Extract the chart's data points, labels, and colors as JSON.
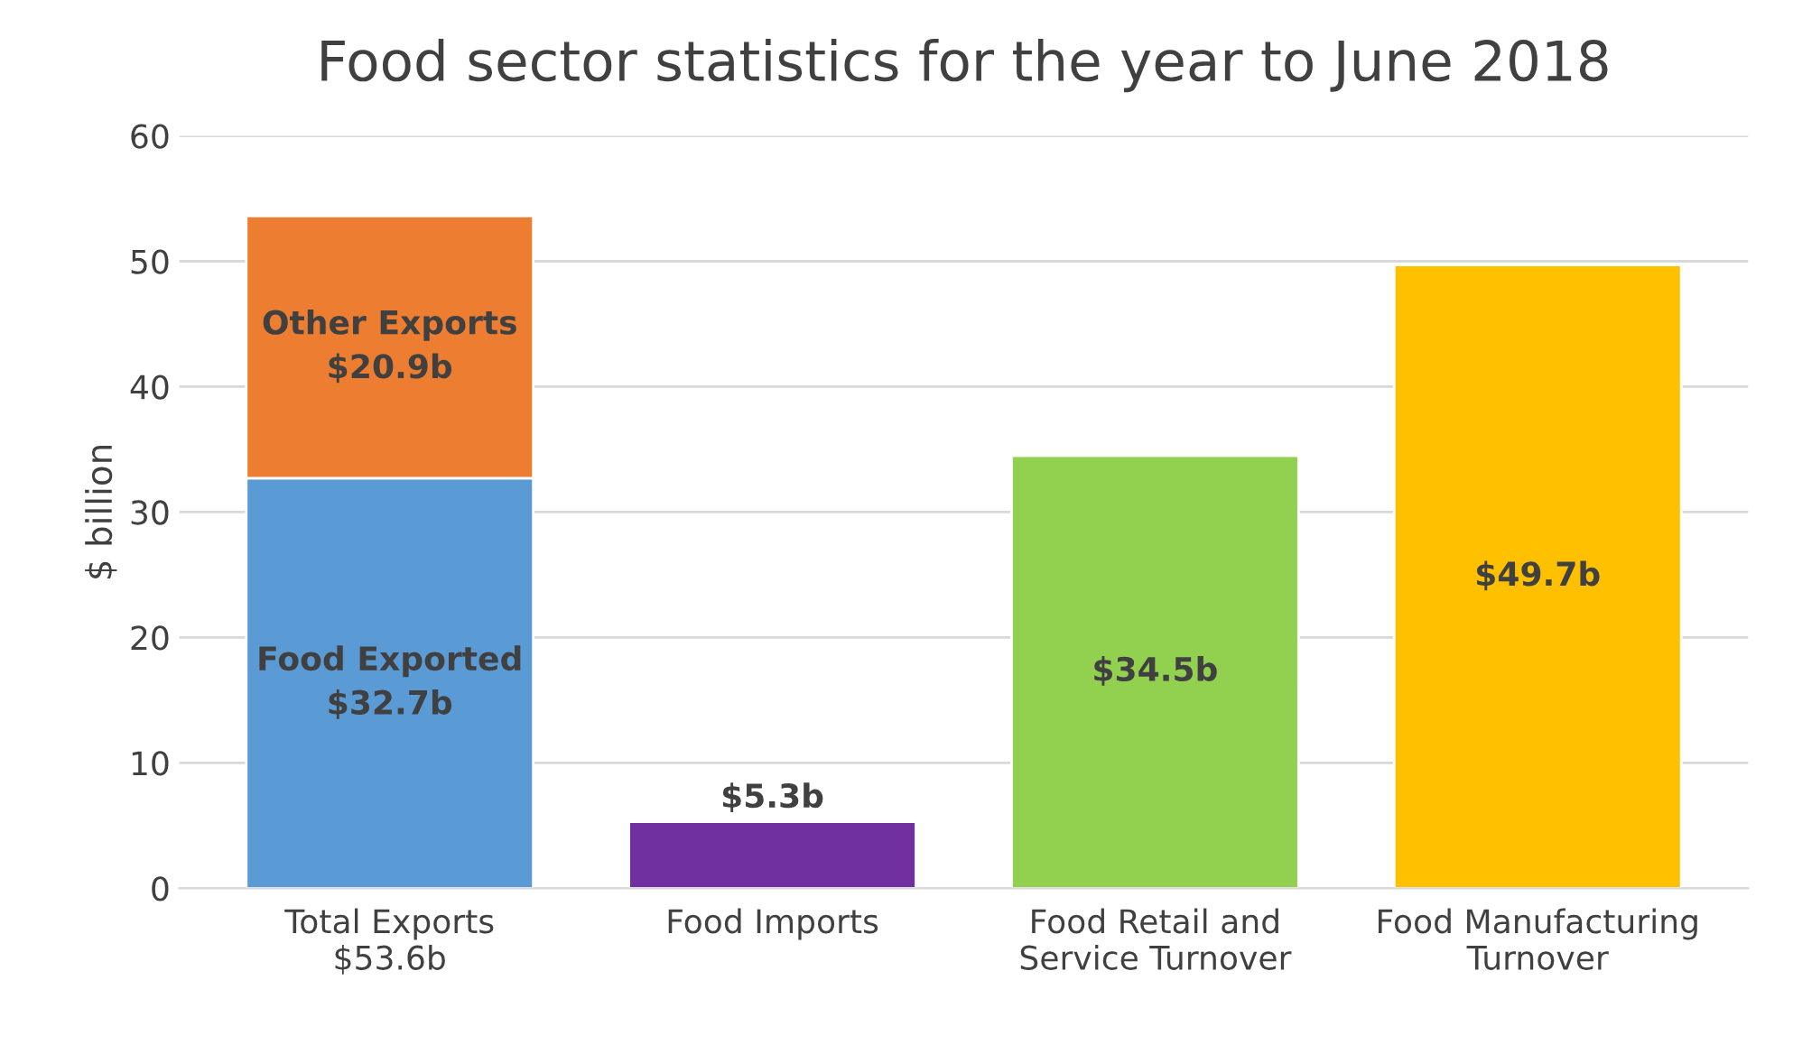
{
  "chart_data": {
    "type": "bar",
    "stacked": true,
    "title": "Food sector statistics for the year to June 2018",
    "ylabel": "$ billion",
    "categories": [
      "Total Exports\n$53.6b",
      "Food Imports",
      "Food Retail and\nService Turnover",
      "Food Manufacturing\nTurnover"
    ],
    "series": [
      {
        "colors": [
          "#5b9bd5",
          "#7030a0",
          "#92d050",
          "#ffc000"
        ],
        "values": [
          32.7,
          5.3,
          34.5,
          49.7
        ],
        "value_labels": [
          "Food Exported\n$32.7b",
          "$5.3b",
          "$34.5b",
          "$49.7b"
        ]
      },
      {
        "colors": [
          "#ed7d31",
          null,
          null,
          null
        ],
        "values": [
          20.9,
          null,
          null,
          null
        ],
        "value_labels": [
          "Other Exports\n$20.9b",
          null,
          null,
          null
        ]
      }
    ],
    "ylim": [
      0,
      60
    ],
    "yticks": [
      0,
      10,
      20,
      30,
      40,
      50,
      60
    ],
    "grid": "y",
    "legend": false
  }
}
